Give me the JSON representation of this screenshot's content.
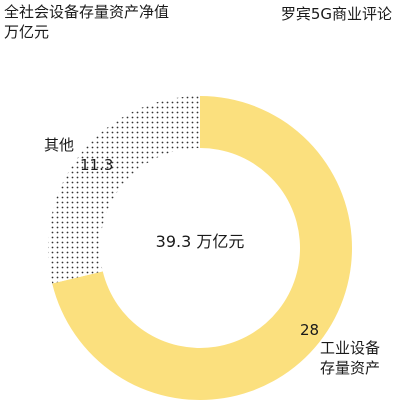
{
  "header": {
    "title_line1": "全社会设备存量资产净值",
    "title_line2": "万亿元",
    "source": "罗宾5G商业评论"
  },
  "colors": {
    "industrial": "#fbe07e",
    "other_dots": "#333333",
    "background": "#ffffff"
  },
  "chart_data": {
    "type": "pie",
    "donut": true,
    "title": "全社会设备存量资产净值",
    "unit": "万亿元",
    "center_label": "39.3 万亿元",
    "total": 39.3,
    "slices": [
      {
        "name": "工业设备存量资产",
        "name_line1": "工业设备",
        "name_line2": "存量资产",
        "value": 28,
        "value_label": "28"
      },
      {
        "name": "其他",
        "value": 11.3,
        "value_label": "11.3"
      }
    ]
  }
}
